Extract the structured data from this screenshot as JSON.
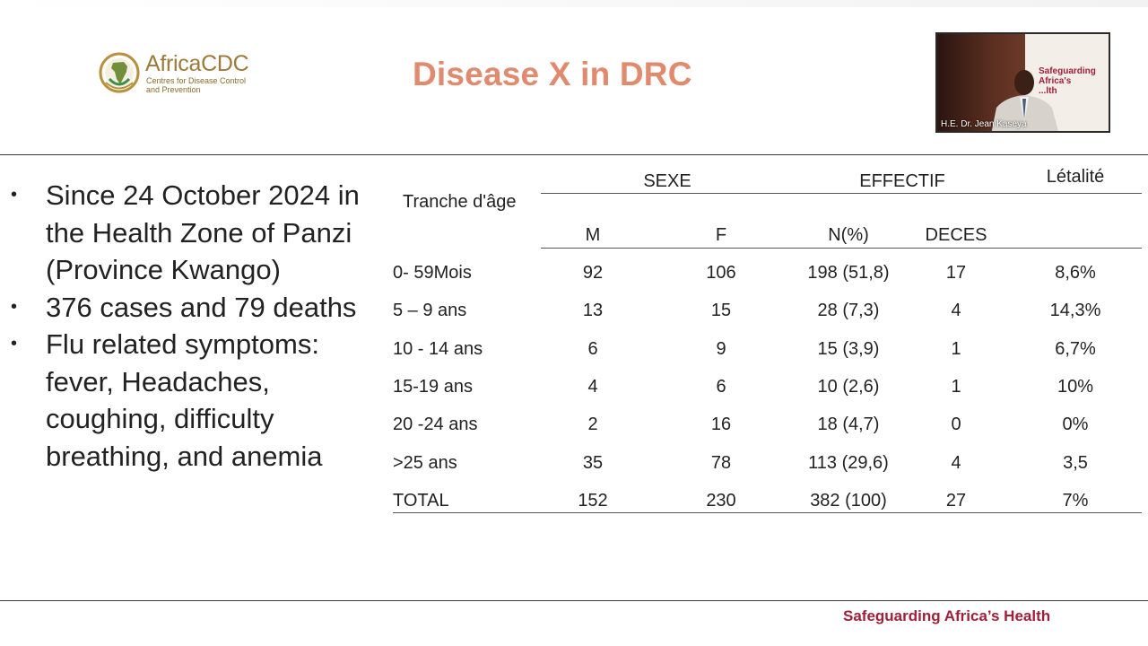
{
  "header": {
    "logo": {
      "name": "AfricaCDC",
      "subtitle_line1": "Centres for Disease Control",
      "subtitle_line2": "and Prevention"
    },
    "title": "Disease X in DRC"
  },
  "video": {
    "banner_line1": "Safeguarding",
    "banner_line2": "Africa's",
    "banner_line3": "...lth",
    "caption": "H.E. Dr. Jean Kaseya"
  },
  "bullets": [
    "Since 24 October 2024 in the Health Zone of Panzi (Province Kwango)",
    "376 cases and 79 deaths",
    "Flu related symptoms: fever, Headaches, coughing, difficulty breathing, and anemia"
  ],
  "table": {
    "group_headers": {
      "age": "Tranche d'âge",
      "sexe": "SEXE",
      "effectif": "EFFECTIF",
      "letalite": "Létalité"
    },
    "sub_headers": [
      "M",
      "F",
      "N(%)",
      "DECES"
    ],
    "rows": [
      [
        "0- 59Mois",
        "92",
        "106",
        "198  (51,8)",
        "17",
        "8,6%"
      ],
      [
        "5 – 9 ans",
        "13",
        "15",
        "28 (7,3)",
        "4",
        "14,3%"
      ],
      [
        "10  - 14 ans",
        "6",
        "9",
        "15 (3,9)",
        "1",
        "6,7%"
      ],
      [
        "15-19 ans",
        "4",
        "6",
        "10 (2,6)",
        "1",
        "10%"
      ],
      [
        "20 -24 ans",
        "2",
        "16",
        "18 (4,7)",
        "0",
        "0%"
      ],
      [
        ">25 ans",
        "35",
        "78",
        "113 (29,6)",
        "4",
        "3,5"
      ],
      [
        "TOTAL",
        "152",
        "230",
        "382 (100)",
        "27",
        "7%"
      ]
    ]
  },
  "footer": {
    "tagline": "Safeguarding Africa’s Health"
  },
  "colors": {
    "title": "#e08a6e",
    "brand_red": "#a0203a",
    "logo_gold": "#9c7a3a"
  }
}
